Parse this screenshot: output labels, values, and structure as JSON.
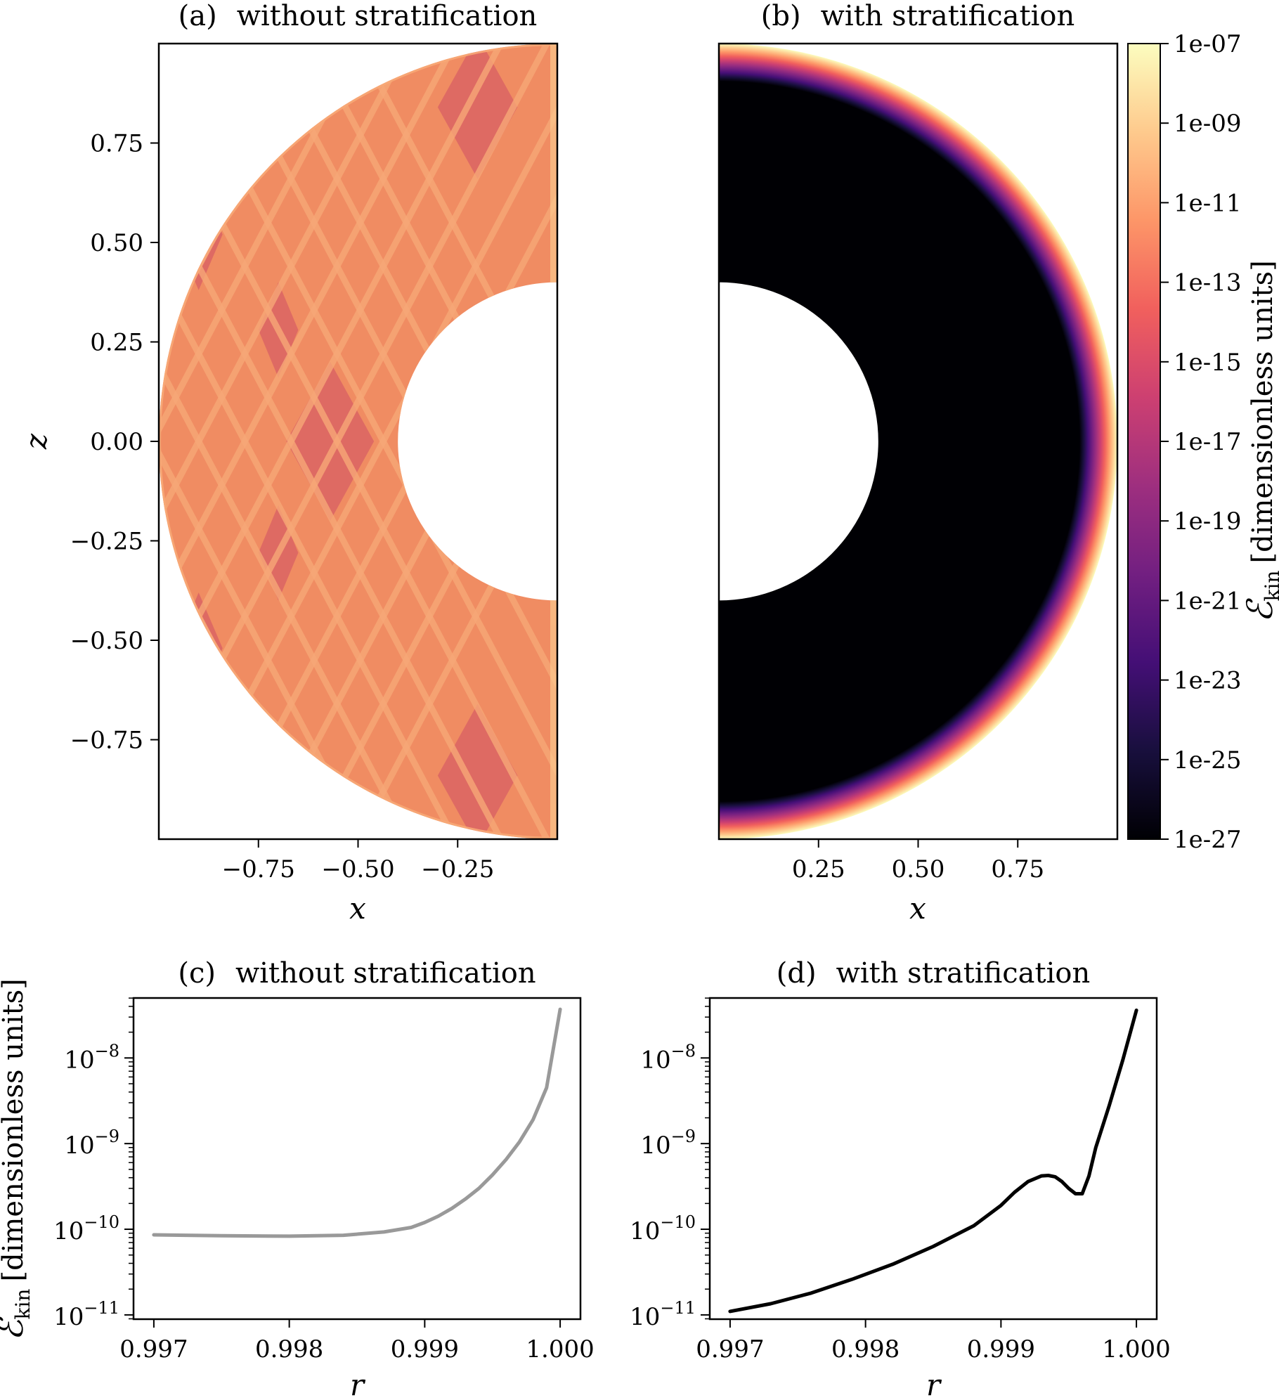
{
  "chart_data": [
    {
      "id": "a",
      "type": "heatmap",
      "panel_label": "(a)",
      "title": "without stratification",
      "xlabel": "x",
      "ylabel": "z",
      "xlim": [
        -1.0,
        0.0
      ],
      "ylim": [
        -1.0,
        1.0
      ],
      "xticks": [
        "−0.75",
        "−0.50",
        "−0.25"
      ],
      "xtick_values": [
        -0.75,
        -0.5,
        -0.25
      ],
      "yticks": [
        "0.75",
        "0.50",
        "0.25",
        "0.00",
        "−0.25",
        "−0.50",
        "−0.75"
      ],
      "ytick_values": [
        0.75,
        0.5,
        0.25,
        0.0,
        -0.25,
        -0.5,
        -0.75
      ],
      "inner_radius": 0.4,
      "outer_radius": 1.0,
      "description_colors": {
        "base": "#f08c62",
        "ray": "#f7a877",
        "dark": "#cf4f65"
      }
    },
    {
      "id": "b",
      "type": "heatmap",
      "panel_label": "(b)",
      "title": "with stratification",
      "xlabel": "x",
      "xlim": [
        0.0,
        1.0
      ],
      "ylim": [
        -1.0,
        1.0
      ],
      "xticks": [
        "0.25",
        "0.50",
        "0.75"
      ],
      "xtick_values": [
        0.25,
        0.5,
        0.75
      ],
      "inner_radius": 0.4,
      "outer_radius": 1.0,
      "colorbar": {
        "label_main": "ℰ",
        "label_sub": "kin",
        "label_units": "[dimensionless units]",
        "ticks": [
          "1e-07",
          "1e-09",
          "1e-11",
          "1e-13",
          "1e-15",
          "1e-17",
          "1e-19",
          "1e-21",
          "1e-23",
          "1e-25",
          "1e-27"
        ],
        "exponents": [
          -7,
          -9,
          -11,
          -13,
          -15,
          -17,
          -19,
          -21,
          -23,
          -25,
          -27
        ],
        "range_exponents": [
          -27,
          -7
        ],
        "colormap": [
          "#000004",
          "#180f3d",
          "#440f76",
          "#721f81",
          "#9e2f7f",
          "#cd4071",
          "#f1605d",
          "#fd9668",
          "#feca8d",
          "#fcfdbf"
        ]
      }
    },
    {
      "id": "c",
      "type": "line",
      "panel_label": "(c)",
      "title": "without stratification",
      "xlabel": "r",
      "ylabel_main": "ℰ",
      "ylabel_sub": "kin",
      "ylabel_units": "[dimensionless units]",
      "yscale": "log",
      "xlim": [
        0.99685,
        1.00015
      ],
      "ylim_exp": [
        -11.05,
        -7.3
      ],
      "xticks": [
        "0.997",
        "0.998",
        "0.999",
        "1.000"
      ],
      "xtick_values": [
        0.997,
        0.998,
        0.999,
        1.0
      ],
      "ytick_exponents": [
        -8,
        -9,
        -10,
        -11
      ],
      "ytick_base": "10",
      "line_color": "#999999",
      "series": [
        {
          "name": "E_kin",
          "x": [
            0.997,
            0.9975,
            0.998,
            0.9984,
            0.9987,
            0.9989,
            0.999,
            0.9991,
            0.9992,
            0.9993,
            0.9994,
            0.9995,
            0.9996,
            0.9997,
            0.9998,
            0.9999,
            1.0
          ],
          "y": [
            8.6e-11,
            8.4e-11,
            8.3e-11,
            8.5e-11,
            9.3e-11,
            1.05e-10,
            1.2e-10,
            1.42e-10,
            1.75e-10,
            2.25e-10,
            3e-10,
            4.3e-10,
            6.5e-10,
            1.05e-09,
            1.9e-09,
            4.5e-09,
            3.7e-08
          ]
        }
      ]
    },
    {
      "id": "d",
      "type": "line",
      "panel_label": "(d)",
      "title": "with stratification",
      "xlabel": "r",
      "yscale": "log",
      "xlim": [
        0.99685,
        1.00015
      ],
      "ylim_exp": [
        -11.05,
        -7.3
      ],
      "xticks": [
        "0.997",
        "0.998",
        "0.999",
        "1.000"
      ],
      "xtick_values": [
        0.997,
        0.998,
        0.999,
        1.0
      ],
      "ytick_exponents": [
        -8,
        -9,
        -10,
        -11
      ],
      "ytick_base": "10",
      "line_color": "#000000",
      "series": [
        {
          "name": "E_kin",
          "x": [
            0.997,
            0.9973,
            0.9976,
            0.9979,
            0.9982,
            0.9985,
            0.9988,
            0.999,
            0.9991,
            0.9992,
            0.9993,
            0.99935,
            0.9994,
            0.99945,
            0.9995,
            0.99955,
            0.9996,
            0.99965,
            0.9997,
            0.9998,
            0.9999,
            1.0
          ],
          "y": [
            1.1e-11,
            1.35e-11,
            1.8e-11,
            2.6e-11,
            3.9e-11,
            6.3e-11,
            1.1e-10,
            1.9e-10,
            2.7e-10,
            3.6e-10,
            4.2e-10,
            4.25e-10,
            4.1e-10,
            3.6e-10,
            3e-10,
            2.6e-10,
            2.6e-10,
            4.2e-10,
            9e-10,
            2.8e-09,
            9.5e-09,
            3.6e-08
          ]
        }
      ]
    }
  ]
}
